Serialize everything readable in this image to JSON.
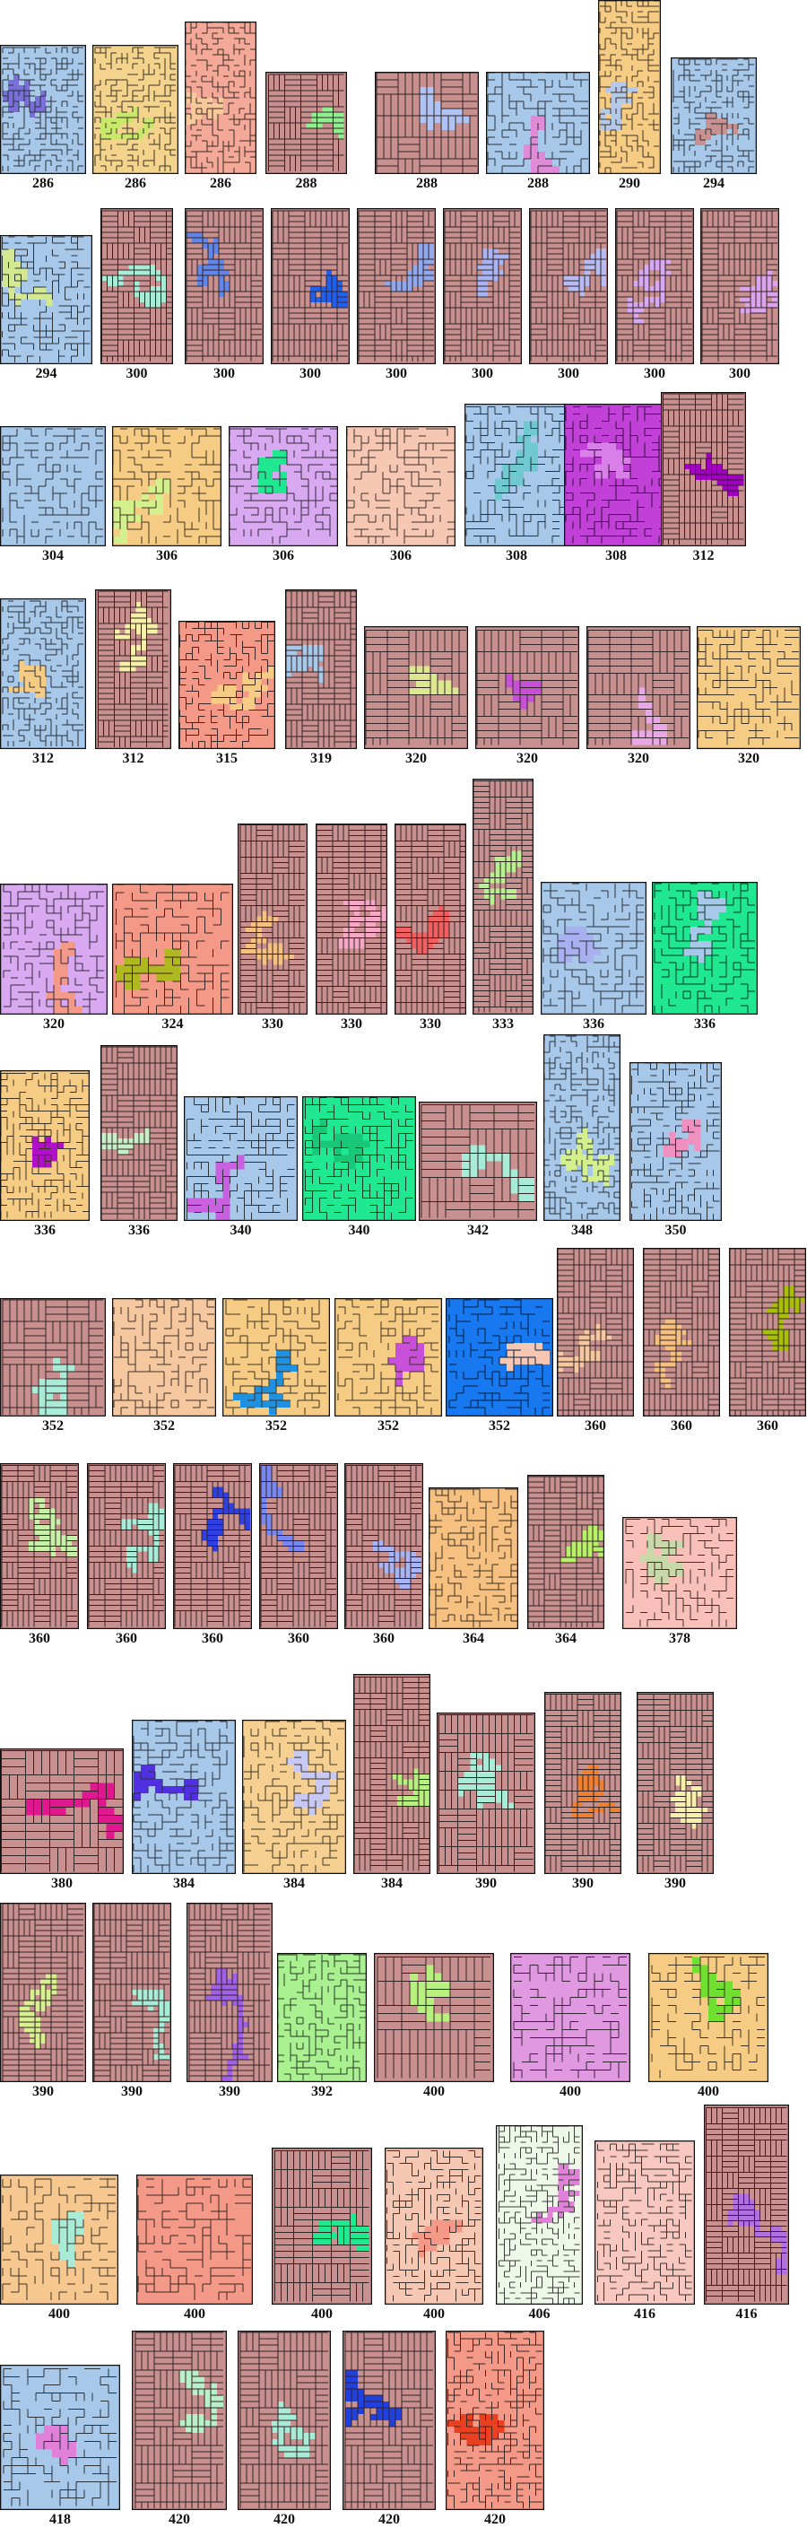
{
  "tiles": [
    {
      "label": "286",
      "bg": "#a8c8ea",
      "accent": "#7a6fd8"
    },
    {
      "label": "286",
      "bg": "#f4d48c",
      "accent": "#c8e86a"
    },
    {
      "label": "286",
      "bg": "#f4a898",
      "accent": "#f7c89a"
    },
    {
      "label": "288",
      "bg": "#c99090",
      "accent": "#90f090"
    },
    {
      "label": "288",
      "bg": "#c99090",
      "accent": "#b0c4f4"
    },
    {
      "label": "288",
      "bg": "#a8c8ea",
      "accent": "#e08ad8"
    },
    {
      "label": "290",
      "bg": "#f6cc84",
      "accent": "#b4c8ea"
    },
    {
      "label": "294",
      "bg": "#a8c8ea",
      "accent": "#c99090"
    },
    {
      "label": "294",
      "bg": "#a8c8ea",
      "accent": "#d4e890"
    },
    {
      "label": "300",
      "bg": "#c99090",
      "accent": "#a8ecd8"
    },
    {
      "label": "300",
      "bg": "#c99090",
      "accent": "#5f86e8"
    },
    {
      "label": "300",
      "bg": "#c99090",
      "accent": "#2060f0"
    },
    {
      "label": "300",
      "bg": "#c99090",
      "accent": "#8fa8f0"
    },
    {
      "label": "300",
      "bg": "#c99090",
      "accent": "#a8b4f4"
    },
    {
      "label": "300",
      "bg": "#c99090",
      "accent": "#b8bcf4"
    },
    {
      "label": "300",
      "bg": "#c99090",
      "accent": "#d8a8f4"
    },
    {
      "label": "300",
      "bg": "#c99090",
      "accent": "#dca4ec"
    },
    {
      "label": "304",
      "bg": "#a8c8ea",
      "accent": "#a8c8ea"
    },
    {
      "label": "306",
      "bg": "#f6cc84",
      "accent": "#d4f08c"
    },
    {
      "label": "306",
      "bg": "#d8a8f0",
      "accent": "#20e890"
    },
    {
      "label": "306",
      "bg": "#f6c8b4",
      "accent": "#f6c8b4"
    },
    {
      "label": "308",
      "bg": "#a8c8ea",
      "accent": "#70c8d0"
    },
    {
      "label": "308",
      "bg": "#c040d8",
      "accent": "#d880e8"
    },
    {
      "label": "312",
      "bg": "#c99090",
      "accent": "#a000c0"
    },
    {
      "label": "312",
      "bg": "#a8c8ea",
      "accent": "#f6cc84"
    },
    {
      "label": "312",
      "bg": "#c99090",
      "accent": "#f8f0a8"
    },
    {
      "label": "315",
      "bg": "#f49888",
      "accent": "#f6cc84"
    },
    {
      "label": "319",
      "bg": "#c99090",
      "accent": "#a8c8ea"
    },
    {
      "label": "320",
      "bg": "#c99090",
      "accent": "#dce890"
    },
    {
      "label": "320",
      "bg": "#c99090",
      "accent": "#c850d8"
    },
    {
      "label": "320",
      "bg": "#c99090",
      "accent": "#e8a8e8"
    },
    {
      "label": "320",
      "bg": "#f6cc84",
      "accent": "#f6cc84"
    },
    {
      "label": "320",
      "bg": "#d8a8f0",
      "accent": "#f49888"
    },
    {
      "label": "324",
      "bg": "#f49888",
      "accent": "#b0b820"
    },
    {
      "label": "330",
      "bg": "#c99090",
      "accent": "#f6c080"
    },
    {
      "label": "330",
      "bg": "#c99090",
      "accent": "#f4a8c4"
    },
    {
      "label": "330",
      "bg": "#c99090",
      "accent": "#f06060"
    },
    {
      "label": "333",
      "bg": "#c99090",
      "accent": "#b8f090"
    },
    {
      "label": "336",
      "bg": "#a8c8ea",
      "accent": "#a8b0f0"
    },
    {
      "label": "336",
      "bg": "#20e890",
      "accent": "#a8c8ea"
    },
    {
      "label": "336",
      "bg": "#f6cc84",
      "accent": "#b010c8"
    },
    {
      "label": "336",
      "bg": "#c99090",
      "accent": "#c8f0c8"
    },
    {
      "label": "340",
      "bg": "#a8c8ea",
      "accent": "#c860e0"
    },
    {
      "label": "340",
      "bg": "#20e890",
      "accent": "#18c878"
    },
    {
      "label": "342",
      "bg": "#c99090",
      "accent": "#a8ecd8"
    },
    {
      "label": "348",
      "bg": "#a8c8ea",
      "accent": "#d4f08c"
    },
    {
      "label": "350",
      "bg": "#a8c8ea",
      "accent": "#f090c0"
    },
    {
      "label": "352",
      "bg": "#c99090",
      "accent": "#a8ecd8"
    },
    {
      "label": "352",
      "bg": "#f6c8a0",
      "accent": "#f6c8a0"
    },
    {
      "label": "352",
      "bg": "#f6cc84",
      "accent": "#2090e0"
    },
    {
      "label": "352",
      "bg": "#f6cc84",
      "accent": "#c850d8"
    },
    {
      "label": "352",
      "bg": "#1878f0",
      "accent": "#f6c8b4"
    },
    {
      "label": "360",
      "bg": "#c99090",
      "accent": "#f6c8a0"
    },
    {
      "label": "360",
      "bg": "#c99090",
      "accent": "#f6c080"
    },
    {
      "label": "360",
      "bg": "#c99090",
      "accent": "#a8c000"
    },
    {
      "label": "360",
      "bg": "#c99090",
      "accent": "#c8f0a8"
    },
    {
      "label": "360",
      "bg": "#c99090",
      "accent": "#a8ecd8"
    },
    {
      "label": "360",
      "bg": "#c99090",
      "accent": "#3040e0"
    },
    {
      "label": "360",
      "bg": "#c99090",
      "accent": "#7888f0"
    },
    {
      "label": "360",
      "bg": "#c99090",
      "accent": "#a8b4f4"
    },
    {
      "label": "364",
      "bg": "#f6c080",
      "accent": "#f6c080"
    },
    {
      "label": "364",
      "bg": "#c99090",
      "accent": "#b8f068"
    },
    {
      "label": "378",
      "bg": "#f8c0b8",
      "accent": "#c8d8a8"
    },
    {
      "label": "380",
      "bg": "#c99090",
      "accent": "#e01890"
    },
    {
      "label": "384",
      "bg": "#a8c8ea",
      "accent": "#5030e0"
    },
    {
      "label": "384",
      "bg": "#f6d090",
      "accent": "#c8c8f4"
    },
    {
      "label": "384",
      "bg": "#c99090",
      "accent": "#b8f080"
    },
    {
      "label": "390",
      "bg": "#c99090",
      "accent": "#a8ecd8"
    },
    {
      "label": "390",
      "bg": "#c99090",
      "accent": "#f08030"
    },
    {
      "label": "390",
      "bg": "#c99090",
      "accent": "#f8f0a8"
    },
    {
      "label": "390",
      "bg": "#c99090",
      "accent": "#d8f090"
    },
    {
      "label": "390",
      "bg": "#c99090",
      "accent": "#a8ecd8"
    },
    {
      "label": "390",
      "bg": "#c99090",
      "accent": "#a060e8"
    },
    {
      "label": "392",
      "bg": "#a8f090",
      "accent": "#a8f090"
    },
    {
      "label": "400",
      "bg": "#c99090",
      "accent": "#b8f080"
    },
    {
      "label": "400",
      "bg": "#e098e0",
      "accent": "#e098e0"
    },
    {
      "label": "400",
      "bg": "#f6cc84",
      "accent": "#70e030"
    },
    {
      "label": "400",
      "bg": "#f6c890",
      "accent": "#a8ecd8"
    },
    {
      "label": "400",
      "bg": "#f49888",
      "accent": "#f49888"
    },
    {
      "label": "400",
      "bg": "#c99090",
      "accent": "#20e890"
    },
    {
      "label": "400",
      "bg": "#f6c8b4",
      "accent": "#f49888"
    },
    {
      "label": "406",
      "bg": "#eef8e8",
      "accent": "#e080d8"
    },
    {
      "label": "416",
      "bg": "#f8c8c0",
      "accent": "#f8c8c0"
    },
    {
      "label": "416",
      "bg": "#c99090",
      "accent": "#b070e0"
    },
    {
      "label": "418",
      "bg": "#a8c8ea",
      "accent": "#e080d8"
    },
    {
      "label": "420",
      "bg": "#c99090",
      "accent": "#b8f0c8"
    },
    {
      "label": "420",
      "bg": "#c99090",
      "accent": "#a8ecd8"
    },
    {
      "label": "420",
      "bg": "#c99090",
      "accent": "#2040e0"
    },
    {
      "label": "420",
      "bg": "#f49888",
      "accent": "#e84020"
    }
  ]
}
